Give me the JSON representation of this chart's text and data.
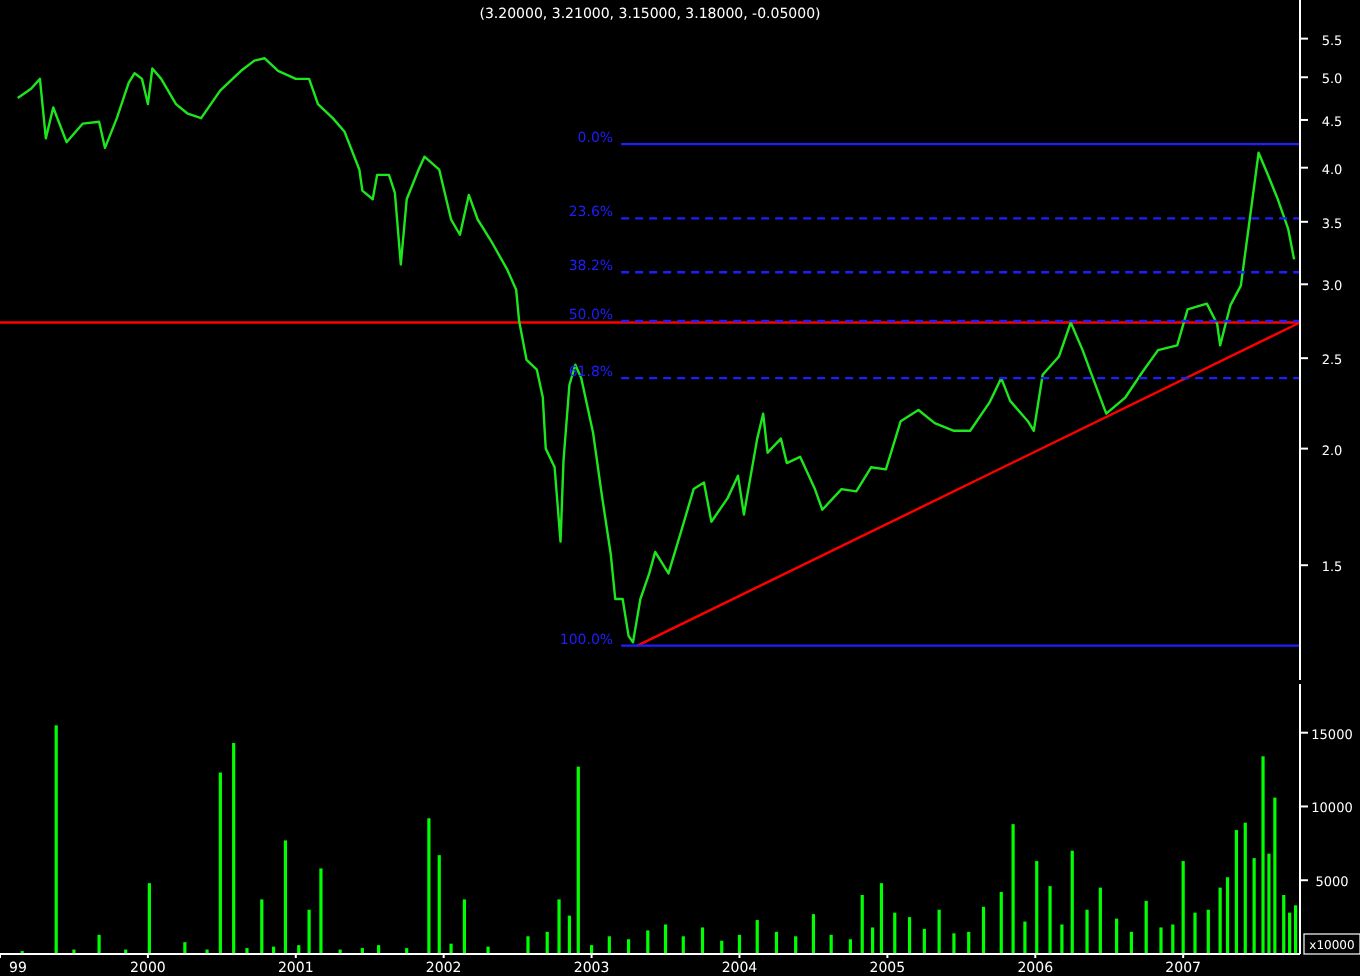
{
  "chart_data": [
    {
      "type": "line",
      "title": "(3.20000, 3.21000, 3.15000, 3.18000, -0.05000)",
      "log": true,
      "tick_labels": "y",
      "xlim": [
        1999.0,
        2007.79
      ],
      "ylim": [
        1.13,
        6.05
      ],
      "yticks": [
        1.5,
        {
          "value": 2,
          "label": "2.0"
        },
        2.5,
        {
          "value": 3,
          "label": "3.0"
        },
        3.5,
        {
          "value": 4,
          "label": "4.0"
        },
        4.5,
        {
          "value": 5,
          "label": "5.0"
        },
        5.5
      ],
      "x": [
        1999.12,
        1999.21,
        1999.27,
        1999.31,
        1999.36,
        1999.45,
        1999.56,
        1999.67,
        1999.71,
        1999.79,
        1999.87,
        1999.91,
        1999.96,
        2000.0,
        2000.03,
        2000.09,
        2000.19,
        2000.27,
        2000.36,
        2000.49,
        2000.63,
        2000.72,
        2000.79,
        2000.88,
        2001.0,
        2001.09,
        2001.15,
        2001.25,
        2001.33,
        2001.43,
        2001.45,
        2001.52,
        2001.55,
        2001.63,
        2001.67,
        2001.71,
        2001.75,
        2001.83,
        2001.87,
        2001.97,
        2002.05,
        2002.11,
        2002.17,
        2002.23,
        2002.32,
        2002.43,
        2002.49,
        2002.51,
        2002.56,
        2002.63,
        2002.67,
        2002.69,
        2002.75,
        2002.79,
        2002.81,
        2002.85,
        2002.89,
        2002.93,
        2003.01,
        2003.07,
        2003.13,
        2003.16,
        2003.21,
        2003.25,
        2003.28,
        2003.33,
        2003.39,
        2003.43,
        2003.52,
        2003.61,
        2003.69,
        2003.76,
        2003.81,
        2003.92,
        2003.99,
        2004.03,
        2004.12,
        2004.16,
        2004.19,
        2004.28,
        2004.32,
        2004.41,
        2004.51,
        2004.56,
        2004.69,
        2004.79,
        2004.89,
        2004.99,
        2005.09,
        2005.21,
        2005.32,
        2005.45,
        2005.56,
        2005.69,
        2005.77,
        2005.83,
        2005.95,
        2005.99,
        2006.05,
        2006.16,
        2006.24,
        2006.32,
        2006.39,
        2006.48,
        2006.61,
        2006.72,
        2006.83,
        2006.96,
        2007.03,
        2007.16,
        2007.23,
        2007.25,
        2007.32,
        2007.39,
        2007.45,
        2007.51,
        2007.57,
        2007.64,
        2007.71,
        2007.75
      ],
      "series": [
        {
          "color": "#1ee61e",
          "values": [
            4.75,
            4.86,
            4.98,
            4.3,
            4.64,
            4.26,
            4.46,
            4.48,
            4.2,
            4.52,
            4.93,
            5.05,
            4.98,
            4.68,
            5.11,
            4.98,
            4.68,
            4.57,
            4.52,
            4.84,
            5.08,
            5.21,
            5.24,
            5.08,
            4.98,
            4.98,
            4.68,
            4.52,
            4.37,
            3.98,
            3.78,
            3.7,
            3.93,
            3.93,
            3.76,
            3.15,
            3.7,
            3.98,
            4.11,
            3.98,
            3.52,
            3.39,
            3.74,
            3.52,
            3.34,
            3.11,
            2.96,
            2.74,
            2.49,
            2.43,
            2.27,
            2.0,
            1.91,
            1.59,
            1.94,
            2.34,
            2.46,
            2.38,
            2.08,
            1.78,
            1.54,
            1.38,
            1.38,
            1.26,
            1.24,
            1.38,
            1.47,
            1.55,
            1.47,
            1.64,
            1.81,
            1.84,
            1.67,
            1.77,
            1.87,
            1.7,
            2.05,
            2.18,
            1.98,
            2.05,
            1.93,
            1.96,
            1.81,
            1.72,
            1.81,
            1.8,
            1.91,
            1.9,
            2.14,
            2.2,
            2.13,
            2.09,
            2.09,
            2.24,
            2.38,
            2.25,
            2.14,
            2.09,
            2.4,
            2.51,
            2.73,
            2.55,
            2.38,
            2.18,
            2.27,
            2.41,
            2.55,
            2.58,
            2.82,
            2.86,
            2.72,
            2.58,
            2.85,
            2.99,
            3.52,
            4.15,
            3.94,
            3.7,
            3.44,
            3.19
          ]
        },
        {
          "type": "line",
          "color": "#ff0000",
          "x": [
            2003.31,
            2007.79
          ],
          "values": [
            1.23,
            2.73
          ]
        },
        {
          "type": "line",
          "name": "0.0%",
          "color": "#1e1eff",
          "line_style": "solid",
          "x": [
            2003.2,
            2007.79
          ],
          "values": [
            4.24,
            4.24
          ]
        },
        {
          "type": "line",
          "name": "23.6%",
          "color": "#1e1eff",
          "line_style": "dashed",
          "x": [
            2003.2,
            2007.79
          ],
          "values": [
            3.53,
            3.53
          ]
        },
        {
          "type": "line",
          "name": "38.2%",
          "color": "#1e1eff",
          "line_style": "dashed",
          "x": [
            2003.2,
            2007.79
          ],
          "values": [
            3.09,
            3.09
          ]
        },
        {
          "type": "line",
          "name": "50.0%",
          "color": "#1e1eff",
          "line_style": "dashed",
          "x": [
            2003.2,
            2007.79
          ],
          "values": [
            2.74,
            2.74
          ]
        },
        {
          "type": "line",
          "name": "61.8%",
          "color": "#1e1eff",
          "line_style": "dashed",
          "x": [
            2003.2,
            2007.79
          ],
          "values": [
            2.38,
            2.38
          ]
        },
        {
          "type": "line",
          "name": "100.0%",
          "color": "#1e1eff",
          "line_style": "solid",
          "x": [
            2003.2,
            2007.79
          ],
          "values": [
            1.23,
            1.23
          ]
        }
      ],
      "ref_lines": [
        {
          "axis": "y",
          "value": 2.73,
          "color": "#ff0000",
          "line_style": "solid"
        }
      ]
    },
    {
      "type": "bar",
      "color": "#00ff00",
      "xlim": [
        1999.0,
        2007.79
      ],
      "ylim": [
        0,
        18300
      ],
      "yticks": [
        5000,
        10000,
        15000
      ],
      "xticks": [
        {
          "value": 1999,
          "label": "99"
        },
        2000,
        2001,
        2002,
        2003,
        2004,
        2005,
        2006,
        2007
      ],
      "annotations": [
        "x10000"
      ],
      "x": [
        1999.15,
        1999.38,
        1999.5,
        1999.67,
        1999.85,
        2000.01,
        2000.25,
        2000.4,
        2000.49,
        2000.58,
        2000.67,
        2000.77,
        2000.85,
        2000.93,
        2001.02,
        2001.09,
        2001.17,
        2001.3,
        2001.45,
        2001.56,
        2001.75,
        2001.9,
        2001.97,
        2002.05,
        2002.14,
        2002.3,
        2002.57,
        2002.7,
        2002.78,
        2002.85,
        2002.91,
        2003.0,
        2003.12,
        2003.25,
        2003.38,
        2003.5,
        2003.62,
        2003.75,
        2003.88,
        2004.0,
        2004.12,
        2004.25,
        2004.38,
        2004.5,
        2004.62,
        2004.75,
        2004.83,
        2004.9,
        2004.96,
        2005.05,
        2005.15,
        2005.25,
        2005.35,
        2005.45,
        2005.55,
        2005.65,
        2005.77,
        2005.85,
        2005.93,
        2006.01,
        2006.1,
        2006.18,
        2006.25,
        2006.35,
        2006.44,
        2006.55,
        2006.65,
        2006.75,
        2006.85,
        2006.93,
        2007.0,
        2007.08,
        2007.17,
        2007.25,
        2007.3,
        2007.36,
        2007.42,
        2007.48,
        2007.54,
        2007.58,
        2007.62,
        2007.68,
        2007.72,
        2007.76
      ],
      "values": [
        200,
        15500,
        300,
        1300,
        300,
        4800,
        800,
        300,
        12300,
        14300,
        400,
        3700,
        500,
        7700,
        600,
        3000,
        5800,
        300,
        400,
        600,
        400,
        9200,
        6700,
        700,
        3700,
        500,
        1200,
        1500,
        3700,
        2600,
        12700,
        600,
        1200,
        1000,
        1600,
        2000,
        1200,
        1800,
        900,
        1300,
        2300,
        1500,
        1200,
        2700,
        1300,
        1000,
        4000,
        1800,
        4800,
        2800,
        2500,
        1700,
        3000,
        1400,
        1500,
        3200,
        4200,
        8800,
        2200,
        6300,
        4600,
        2000,
        7000,
        3000,
        4500,
        2400,
        1500,
        3600,
        1800,
        2000,
        6300,
        2800,
        3000,
        4500,
        5200,
        8400,
        8900,
        6500,
        13400,
        6800,
        10600,
        4000,
        2800,
        3300
      ]
    }
  ]
}
